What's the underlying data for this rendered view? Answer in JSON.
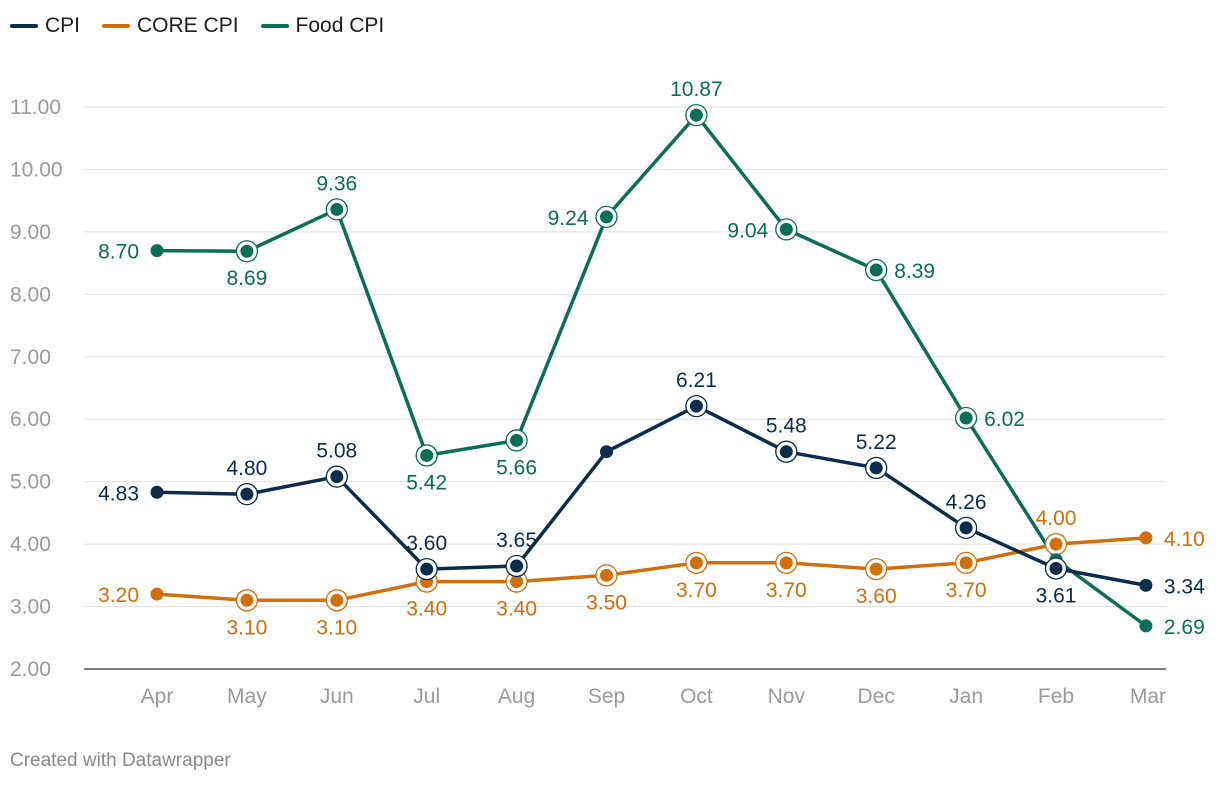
{
  "chart_data": {
    "type": "line",
    "title": "",
    "xlabel": "",
    "ylabel": "",
    "ylim": [
      2.0,
      11.0
    ],
    "yticks": [
      "2.00",
      "3.00",
      "4.00",
      "5.00",
      "6.00",
      "7.00",
      "8.00",
      "9.00",
      "10.00",
      "11.00"
    ],
    "categories": [
      "Apr",
      "May",
      "Jun",
      "Jul",
      "Aug",
      "Sep",
      "Oct",
      "Nov",
      "Dec",
      "Jan",
      "Feb",
      "Mar"
    ],
    "legend_position": "top-left",
    "series": [
      {
        "name": "CPI",
        "color": "#0b2c4a",
        "values": [
          4.83,
          4.8,
          5.08,
          3.6,
          3.65,
          5.48,
          6.21,
          5.48,
          5.22,
          4.26,
          3.61,
          3.34
        ],
        "labels": [
          "4.83",
          "4.80",
          "5.08",
          "3.60",
          "3.65",
          "",
          "6.21",
          "5.48",
          "5.22",
          "4.26",
          "3.61",
          "3.34"
        ]
      },
      {
        "name": "CORE CPI",
        "color": "#d06f0b",
        "values": [
          3.2,
          3.1,
          3.1,
          3.4,
          3.4,
          3.5,
          3.7,
          3.7,
          3.6,
          3.7,
          4.0,
          4.1
        ],
        "labels": [
          "3.20",
          "3.10",
          "3.10",
          "3.40",
          "3.40",
          "3.50",
          "3.70",
          "3.70",
          "3.60",
          "3.70",
          "4.00",
          "4.10"
        ]
      },
      {
        "name": "Food CPI",
        "color": "#0b6e57",
        "values": [
          8.7,
          8.69,
          9.36,
          5.42,
          5.66,
          9.24,
          10.87,
          9.04,
          8.39,
          6.02,
          3.75,
          2.69
        ],
        "labels": [
          "8.70",
          "8.69",
          "9.36",
          "5.42",
          "5.66",
          "9.24",
          "10.87",
          "9.04",
          "8.39",
          "6.02",
          "",
          "2.69"
        ]
      }
    ]
  },
  "footer": {
    "credit": "Created with Datawrapper"
  }
}
